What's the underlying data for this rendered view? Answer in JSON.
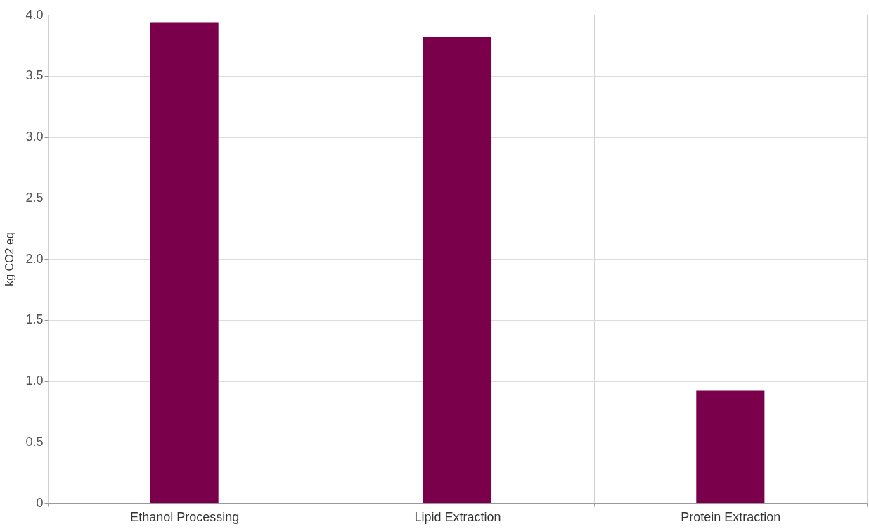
{
  "chart_data": {
    "type": "bar",
    "ylabel": "kg CO2 eq",
    "categories": [
      "Ethanol Processing",
      "Lipid Extraction",
      "Protein Extraction"
    ],
    "values": [
      3.94,
      3.82,
      0.92
    ],
    "color": "#7a004b",
    "ylim": [
      0,
      4.0
    ],
    "yticks": [
      0,
      0.5,
      {
        "value": 1.0,
        "label": "1.0"
      },
      1.5,
      {
        "value": 2.0,
        "label": "2.0"
      },
      2.5,
      {
        "value": 3.0,
        "label": "3.0"
      },
      3.5,
      {
        "value": 4.0,
        "label": "4.0"
      }
    ],
    "grid": true
  }
}
